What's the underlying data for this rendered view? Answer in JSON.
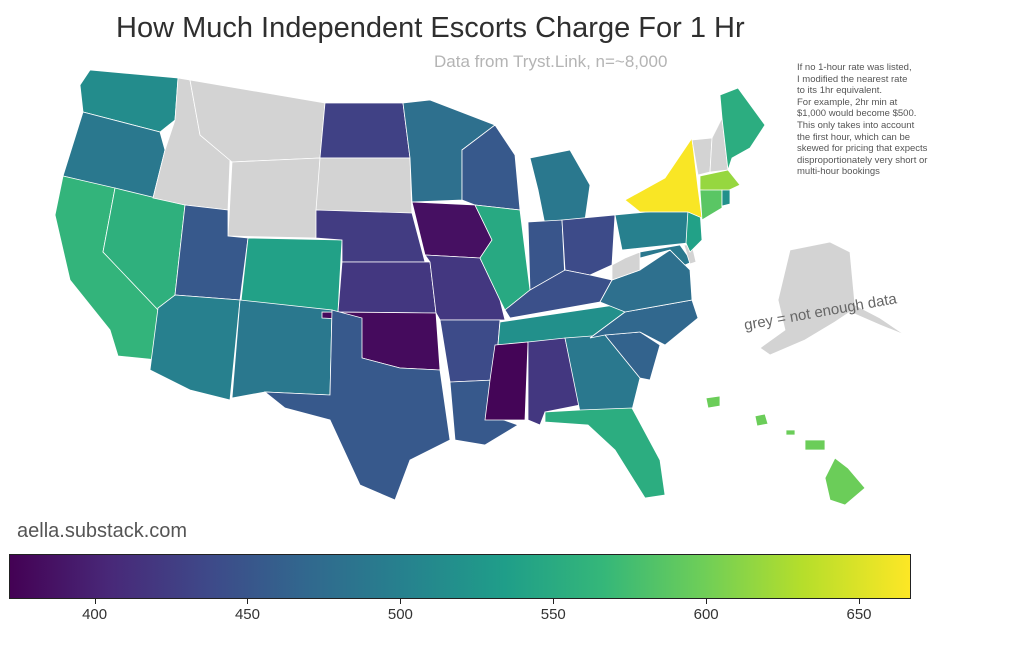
{
  "title": "How Much Independent Escorts Charge For 1 Hr",
  "subtitle": "Data from Tryst.Link, n=~8,000",
  "note_lines": [
    "If no 1-hour rate was listed,",
    "I modified the nearest rate",
    "to its 1hr equivalent.",
    "For example, 2hr min at",
    "$1,000 would become $500.",
    "This only takes into account",
    "the first hour, which can be",
    "skewed for pricing that expects",
    "disproportionately very short or",
    "multi-hour bookings"
  ],
  "grey_label": "grey = not enough data",
  "site": "aella.substack.com",
  "colorbar": {
    "min": 372,
    "max": 667,
    "ticks": [
      400,
      450,
      500,
      550,
      600,
      650
    ],
    "colors": [
      "#440154",
      "#482878",
      "#3e4989",
      "#31688e",
      "#26828e",
      "#1f9e89",
      "#35b779",
      "#6ece58",
      "#b5de2b",
      "#fde725"
    ],
    "no_data_color": "#d3d3d3"
  },
  "state_values": {
    "Washington": 515,
    "Oregon": 490,
    "California": 565,
    "Nevada": 560,
    "Idaho": null,
    "Montana": null,
    "Wyoming": null,
    "South Dakota": null,
    "Utah": 455,
    "Colorado": 540,
    "Arizona": 500,
    "New Mexico": 490,
    "North Dakota": 430,
    "Minnesota": 480,
    "Nebraska": 425,
    "Kansas": 420,
    "Oklahoma": 380,
    "Texas": 455,
    "Iowa": 385,
    "Missouri": 420,
    "Arkansas": 440,
    "Louisiana": 455,
    "Wisconsin": 455,
    "Illinois": 550,
    "Michigan": 490,
    "Indiana": 450,
    "Ohio": 440,
    "Kentucky": 445,
    "Tennessee": 520,
    "Mississippi": 375,
    "Alabama": 420,
    "Georgia": 490,
    "Florida": 555,
    "South Carolina": 465,
    "North Carolina": 470,
    "Virginia": 480,
    "West Virginia": null,
    "Pennsylvania": 500,
    "New York": 665,
    "New Jersey": 540,
    "Delaware": null,
    "Maryland": 490,
    "Connecticut": 590,
    "Rhode Island": 520,
    "Massachusetts": 620,
    "Vermont": null,
    "New Hampshire": null,
    "Maine": 555,
    "Alaska": null,
    "Hawaii": 600
  }
}
